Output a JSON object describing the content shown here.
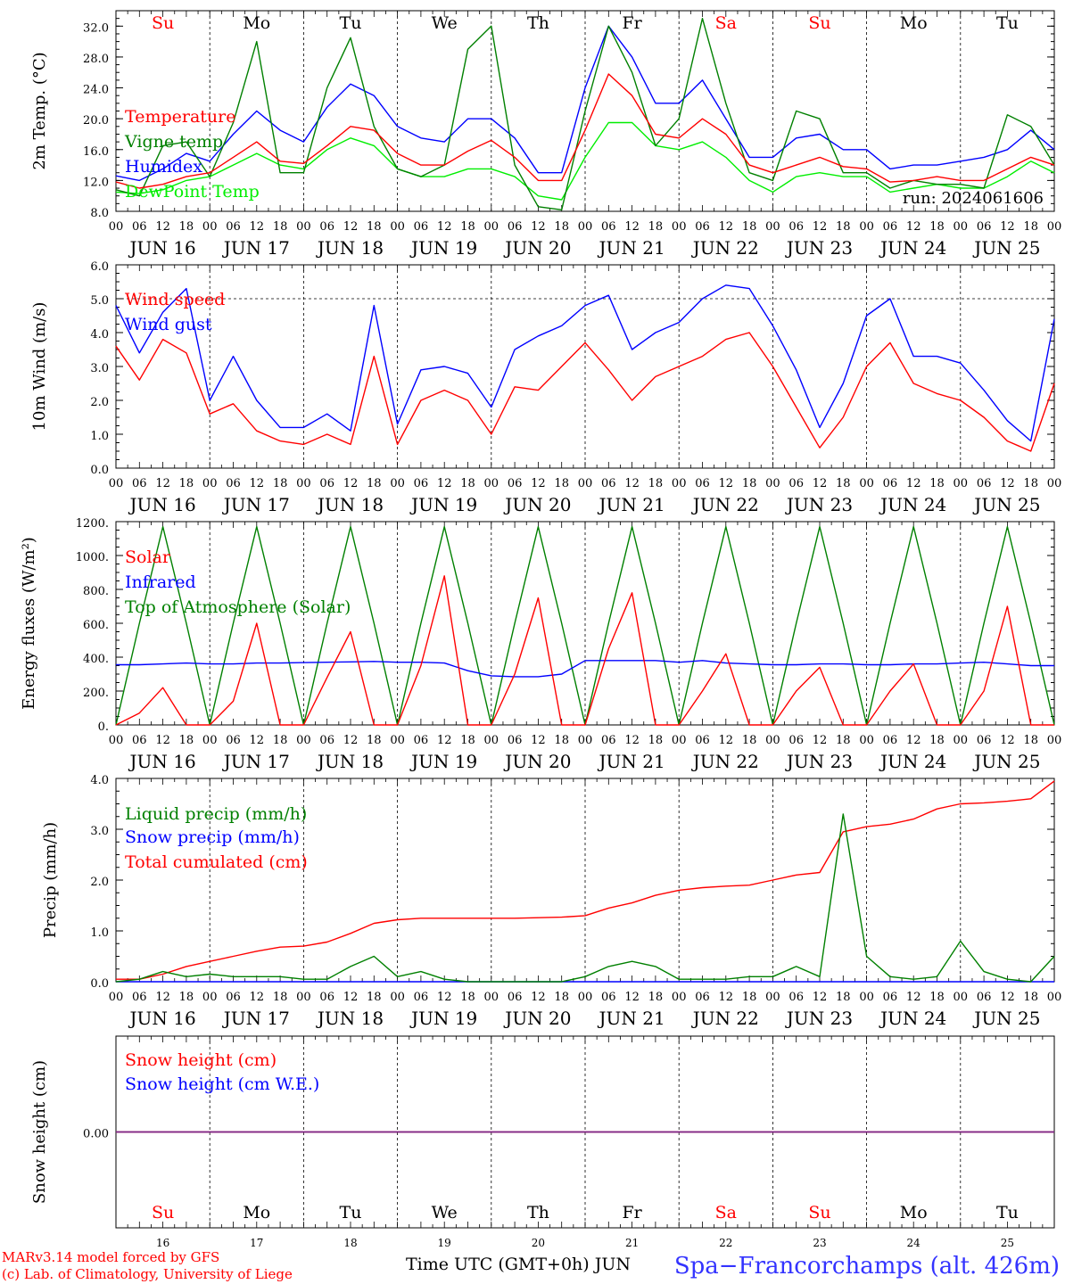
{
  "chart_data": [
    {
      "type": "line",
      "title": "",
      "ylabel": "2m Temp. (°C)",
      "ylim": [
        8,
        34
      ],
      "yticks": [
        "8.0",
        "12.0",
        "16.0",
        "20.0",
        "24.0",
        "28.0",
        "32.0"
      ],
      "run_label": "run: 2024061606",
      "x_hours": [
        0,
        6,
        12,
        18,
        24,
        30,
        36,
        42,
        48,
        54,
        60,
        66,
        72,
        78,
        84,
        90,
        96,
        102,
        108,
        114,
        120,
        126,
        132,
        138,
        144,
        150,
        156,
        162,
        168,
        174,
        180,
        186,
        192,
        198,
        204,
        210,
        216,
        222,
        228,
        234,
        240
      ],
      "series": [
        {
          "name": "Temperature",
          "color": "#ff0000",
          "values": [
            11.8,
            11.0,
            11.5,
            12.5,
            13.0,
            15.0,
            17.0,
            14.5,
            14.2,
            16.5,
            19.0,
            18.5,
            15.5,
            14.0,
            14.0,
            15.8,
            17.2,
            15.0,
            12.0,
            12.0,
            18.5,
            25.8,
            23.0,
            18.0,
            17.5,
            20.0,
            18.0,
            14.0,
            13.0,
            14.0,
            15.0,
            13.8,
            13.5,
            11.8,
            12.0,
            12.5,
            12.0,
            12.0,
            13.5,
            15.0,
            14.0
          ]
        },
        {
          "name": "Vigne temp",
          "color": "#008000",
          "values": [
            10.8,
            10.0,
            16.5,
            17.0,
            12.5,
            19.5,
            30.0,
            13.0,
            13.0,
            24.0,
            30.5,
            19.0,
            13.5,
            12.5,
            14.0,
            29.0,
            32.0,
            14.0,
            8.6,
            8.2,
            21.0,
            32.0,
            26.0,
            16.5,
            20.0,
            33.0,
            22.0,
            13.0,
            12.0,
            21.0,
            20.0,
            13.0,
            13.0,
            11.0,
            12.0,
            11.5,
            11.5,
            11.0,
            20.5,
            19.0,
            14.0
          ]
        },
        {
          "name": "Humidex",
          "color": "#0000ff",
          "values": [
            12.6,
            12.0,
            13.5,
            15.5,
            14.5,
            18.0,
            21.0,
            18.5,
            17.0,
            21.5,
            24.5,
            23.0,
            19.0,
            17.5,
            17.0,
            20.0,
            20.0,
            17.5,
            13.0,
            13.0,
            24.0,
            32.0,
            28.0,
            22.0,
            22.0,
            25.0,
            20.0,
            15.0,
            15.0,
            17.5,
            18.0,
            16.0,
            16.0,
            13.5,
            14.0,
            14.0,
            14.5,
            15.0,
            16.0,
            18.5,
            16.0
          ]
        },
        {
          "name": "DewPoint Temp",
          "color": "#00ee00",
          "values": [
            10.5,
            10.3,
            10.8,
            12.0,
            12.5,
            14.0,
            15.5,
            14.0,
            13.5,
            16.0,
            17.5,
            16.5,
            13.5,
            12.5,
            12.5,
            13.5,
            13.5,
            12.5,
            10.0,
            9.5,
            15.0,
            19.5,
            19.5,
            16.5,
            16.0,
            17.0,
            15.0,
            12.0,
            10.5,
            12.5,
            13.0,
            12.5,
            12.5,
            10.5,
            11.0,
            11.5,
            11.0,
            11.0,
            12.5,
            14.5,
            13.0
          ]
        }
      ],
      "legend": [
        "Temperature",
        "Vigne temp",
        "Humidex",
        "DewPoint Temp"
      ]
    },
    {
      "type": "line",
      "title": "",
      "ylabel": "10m Wind (m/s)",
      "ylim": [
        0,
        6
      ],
      "yticks": [
        "0.0",
        "1.0",
        "2.0",
        "3.0",
        "4.0",
        "5.0",
        "6.0"
      ],
      "ref_line": 5.0,
      "x_hours": [
        0,
        6,
        12,
        18,
        24,
        30,
        36,
        42,
        48,
        54,
        60,
        66,
        72,
        78,
        84,
        90,
        96,
        102,
        108,
        114,
        120,
        126,
        132,
        138,
        144,
        150,
        156,
        162,
        168,
        174,
        180,
        186,
        192,
        198,
        204,
        210,
        216,
        222,
        228,
        234,
        240
      ],
      "series": [
        {
          "name": "Wind speed",
          "color": "#ff0000",
          "values": [
            3.6,
            2.6,
            3.8,
            3.4,
            1.6,
            1.9,
            1.1,
            0.8,
            0.7,
            1.0,
            0.7,
            3.3,
            0.7,
            2.0,
            2.3,
            2.0,
            1.0,
            2.4,
            2.3,
            3.0,
            3.7,
            2.9,
            2.0,
            2.7,
            3.0,
            3.3,
            3.8,
            4.0,
            3.0,
            1.8,
            0.6,
            1.5,
            3.0,
            3.7,
            2.5,
            2.2,
            2.0,
            1.5,
            0.8,
            0.5,
            2.5
          ]
        },
        {
          "name": "Wind gust",
          "color": "#0000ff",
          "values": [
            4.8,
            3.4,
            4.6,
            5.3,
            2.0,
            3.3,
            2.0,
            1.2,
            1.2,
            1.6,
            1.1,
            4.8,
            1.3,
            2.9,
            3.0,
            2.8,
            1.8,
            3.5,
            3.9,
            4.2,
            4.8,
            5.1,
            3.5,
            4.0,
            4.3,
            5.0,
            5.4,
            5.3,
            4.2,
            2.9,
            1.2,
            2.5,
            4.5,
            5.0,
            3.3,
            3.3,
            3.1,
            2.3,
            1.4,
            0.8,
            4.4
          ]
        }
      ],
      "legend": [
        "Wind speed",
        "Wind gust"
      ]
    },
    {
      "type": "line",
      "title": "",
      "ylabel": "Energy fluxes (W/m²)",
      "ylim": [
        0,
        1200
      ],
      "yticks": [
        "0.",
        "200.",
        "400.",
        "600.",
        "800.",
        "1000.",
        "1200."
      ],
      "x_hours": [
        0,
        6,
        12,
        18,
        24,
        30,
        36,
        42,
        48,
        54,
        60,
        66,
        72,
        78,
        84,
        90,
        96,
        102,
        108,
        114,
        120,
        126,
        132,
        138,
        144,
        150,
        156,
        162,
        168,
        174,
        180,
        186,
        192,
        198,
        204,
        210,
        216,
        222,
        228,
        234,
        240
      ],
      "series": [
        {
          "name": "Solar",
          "color": "#ff0000",
          "values": [
            0,
            70,
            220,
            0,
            0,
            140,
            600,
            0,
            0,
            280,
            550,
            0,
            0,
            350,
            880,
            0,
            0,
            300,
            750,
            0,
            0,
            450,
            780,
            0,
            0,
            200,
            420,
            0,
            0,
            200,
            340,
            0,
            0,
            200,
            360,
            0,
            0,
            200,
            700,
            0,
            0
          ]
        },
        {
          "name": "Infrared",
          "color": "#0000ff",
          "values": [
            355,
            355,
            360,
            365,
            360,
            360,
            365,
            365,
            368,
            370,
            372,
            375,
            370,
            370,
            365,
            320,
            290,
            285,
            285,
            300,
            380,
            380,
            380,
            380,
            370,
            380,
            365,
            360,
            355,
            355,
            360,
            360,
            355,
            355,
            360,
            360,
            365,
            370,
            360,
            350,
            350
          ]
        },
        {
          "name": "Top of Atmosphere (Solar)",
          "color": "#008000",
          "values": [
            0,
            600,
            1170,
            600,
            0,
            600,
            1170,
            600,
            0,
            600,
            1170,
            600,
            0,
            600,
            1170,
            600,
            0,
            600,
            1170,
            600,
            0,
            600,
            1170,
            600,
            0,
            600,
            1170,
            600,
            0,
            600,
            1170,
            600,
            0,
            600,
            1170,
            600,
            0,
            600,
            1170,
            600,
            0
          ]
        }
      ],
      "legend": [
        "Solar",
        "Infrared",
        "Top of Atmosphere (Solar)"
      ]
    },
    {
      "type": "line",
      "title": "",
      "ylabel": "Precip (mm/h)",
      "ylim": [
        0,
        4
      ],
      "yticks": [
        "0.0",
        "1.0",
        "2.0",
        "3.0",
        "4.0"
      ],
      "x_hours": [
        0,
        6,
        12,
        18,
        24,
        30,
        36,
        42,
        48,
        54,
        60,
        66,
        72,
        78,
        84,
        90,
        96,
        102,
        108,
        114,
        120,
        126,
        132,
        138,
        144,
        150,
        156,
        162,
        168,
        174,
        180,
        186,
        192,
        198,
        204,
        210,
        216,
        222,
        228,
        234,
        240
      ],
      "series": [
        {
          "name": "Liquid precip (mm/h)",
          "color": "#008000",
          "values": [
            0.0,
            0.05,
            0.2,
            0.1,
            0.15,
            0.1,
            0.1,
            0.1,
            0.05,
            0.05,
            0.3,
            0.5,
            0.1,
            0.2,
            0.05,
            0.0,
            0.0,
            0.0,
            0.0,
            0.0,
            0.1,
            0.3,
            0.4,
            0.3,
            0.05,
            0.05,
            0.05,
            0.1,
            0.1,
            0.3,
            0.1,
            3.3,
            0.5,
            0.1,
            0.05,
            0.1,
            0.8,
            0.2,
            0.05,
            0.0,
            0.5
          ]
        },
        {
          "name": "Snow precip (mm/h)",
          "color": "#0000ff",
          "values": [
            0,
            0,
            0,
            0,
            0,
            0,
            0,
            0,
            0,
            0,
            0,
            0,
            0,
            0,
            0,
            0,
            0,
            0,
            0,
            0,
            0,
            0,
            0,
            0,
            0,
            0,
            0,
            0,
            0,
            0,
            0,
            0,
            0,
            0,
            0,
            0,
            0,
            0,
            0,
            0,
            0
          ]
        },
        {
          "name": "Total cumulated (cm)",
          "color": "#ff0000",
          "values": [
            0.05,
            0.05,
            0.15,
            0.3,
            0.4,
            0.5,
            0.6,
            0.68,
            0.7,
            0.78,
            0.95,
            1.15,
            1.22,
            1.25,
            1.25,
            1.25,
            1.25,
            1.25,
            1.26,
            1.27,
            1.3,
            1.45,
            1.55,
            1.7,
            1.8,
            1.85,
            1.88,
            1.9,
            2.0,
            2.1,
            2.15,
            2.95,
            3.05,
            3.1,
            3.2,
            3.4,
            3.5,
            3.52,
            3.55,
            3.6,
            3.95
          ]
        }
      ],
      "legend": [
        "Liquid precip (mm/h)",
        "Snow precip (mm/h)",
        "Total cumulated (cm)"
      ]
    },
    {
      "type": "line",
      "title": "",
      "ylabel": "Snow height (cm)",
      "ylim": [
        -1,
        1
      ],
      "yticks": [
        "0.00"
      ],
      "x_hours": [
        0,
        240
      ],
      "series": [
        {
          "name": "Snow height (cm)",
          "color": "#ff0000",
          "values": [
            0,
            0
          ]
        },
        {
          "name": "Snow height (cm W.E.)",
          "color": "#0000ff",
          "values": [
            0,
            0
          ]
        }
      ],
      "legend": [
        "Snow height (cm)",
        "Snow height (cm W.E.)"
      ]
    }
  ],
  "weekdays": [
    {
      "label": "Su",
      "color": "#ff0000"
    },
    {
      "label": "Mo",
      "color": "#000000"
    },
    {
      "label": "Tu",
      "color": "#000000"
    },
    {
      "label": "We",
      "color": "#000000"
    },
    {
      "label": "Th",
      "color": "#000000"
    },
    {
      "label": "Fr",
      "color": "#000000"
    },
    {
      "label": "Sa",
      "color": "#ff0000"
    },
    {
      "label": "Su",
      "color": "#ff0000"
    },
    {
      "label": "Mo",
      "color": "#000000"
    },
    {
      "label": "Tu",
      "color": "#000000"
    }
  ],
  "dates": [
    "JUN 16",
    "JUN 17",
    "JUN 18",
    "JUN 19",
    "JUN 20",
    "JUN 21",
    "JUN 22",
    "JUN 23",
    "JUN 24",
    "JUN 25"
  ],
  "day_numbers": [
    "16",
    "17",
    "18",
    "19",
    "20",
    "21",
    "22",
    "23",
    "24",
    "25"
  ],
  "hour_labels": [
    "00",
    "06",
    "12",
    "18"
  ],
  "hour_end_label": "00",
  "footer": {
    "credit_line1": "MARv3.14 model forced by GFS",
    "credit_line2": "(c) Lab. of Climatology, University of Liege",
    "time_axis": "Time UTC (GMT+0h) JUN",
    "station": "Spa−Francorchamps (alt. 426m)"
  }
}
